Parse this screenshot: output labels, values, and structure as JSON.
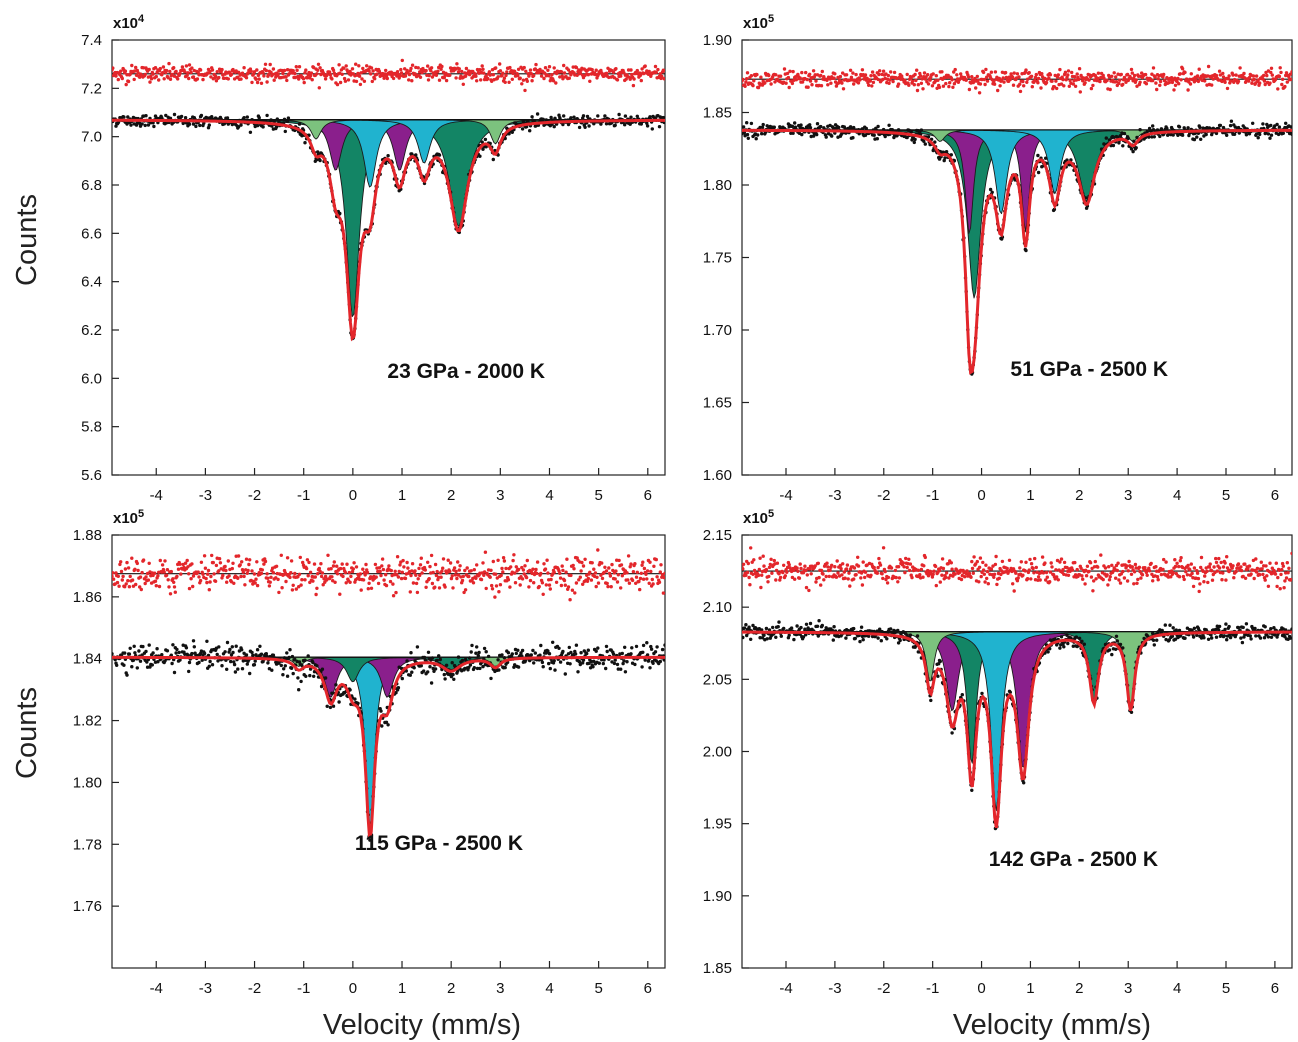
{
  "figure": {
    "ylabel": "Counts",
    "xlabel": "Velocity (mm/s)"
  },
  "colors": {
    "raw_points": "#111111",
    "residual_points": "#e3262b",
    "fit_line": "#e3262b",
    "reference_line": "#111111",
    "components": {
      "dark_green": "#138565",
      "light_green": "#7cc27e",
      "purple": "#8a1f8c",
      "cyan": "#20b3cf"
    }
  },
  "chart_data": [
    {
      "type": "scatter",
      "annotation": "23 GPa - 2000 K",
      "multiplier": "x10",
      "multiplier_exp": "4",
      "unit": 10000,
      "xlim": [
        -4.9,
        6.35
      ],
      "ylim": [
        5.6,
        7.4
      ],
      "xticks": [
        "-4",
        "-3",
        "-2",
        "-1",
        "0",
        "1",
        "2",
        "3",
        "4",
        "5",
        "6"
      ],
      "yticks": [
        "5.6",
        "5.8",
        "6.0",
        "6.2",
        "6.4",
        "6.6",
        "6.8",
        "7.0",
        "7.2",
        "7.4"
      ],
      "baseline": 7.07,
      "residual_level": 7.26,
      "residual_noise": 0.017,
      "data_noise": 0.012,
      "components": [
        {
          "color": "dark_green",
          "center": 0.0,
          "depth": 0.82,
          "width": 0.32
        },
        {
          "color": "dark_green",
          "center": 2.15,
          "depth": 0.44,
          "width": 0.45
        },
        {
          "color": "purple",
          "center": -0.35,
          "depth": 0.21,
          "width": 0.3
        },
        {
          "color": "purple",
          "center": 0.95,
          "depth": 0.21,
          "width": 0.3
        },
        {
          "color": "cyan",
          "center": 0.35,
          "depth": 0.28,
          "width": 0.3
        },
        {
          "color": "cyan",
          "center": 1.45,
          "depth": 0.18,
          "width": 0.3
        },
        {
          "color": "light_green",
          "center": -0.75,
          "depth": 0.08,
          "width": 0.25
        },
        {
          "color": "light_green",
          "center": 2.9,
          "depth": 0.1,
          "width": 0.25
        }
      ]
    },
    {
      "type": "scatter",
      "annotation": "51 GPa - 2500 K",
      "multiplier": "x10",
      "multiplier_exp": "5",
      "unit": 100000,
      "xlim": [
        -4.9,
        6.35
      ],
      "ylim": [
        1.6,
        1.9
      ],
      "xticks": [
        "-4",
        "-3",
        "-2",
        "-1",
        "0",
        "1",
        "2",
        "3",
        "4",
        "5",
        "6"
      ],
      "yticks": [
        "1.60",
        "1.65",
        "1.70",
        "1.75",
        "1.80",
        "1.85",
        "1.90"
      ],
      "baseline": 1.838,
      "residual_level": 1.873,
      "residual_noise": 0.003,
      "data_noise": 0.0022,
      "components": [
        {
          "color": "dark_green",
          "center": -0.15,
          "depth": 0.116,
          "width": 0.32
        },
        {
          "color": "dark_green",
          "center": 2.15,
          "depth": 0.048,
          "width": 0.4
        },
        {
          "color": "purple",
          "center": -0.25,
          "depth": 0.072,
          "width": 0.2
        },
        {
          "color": "purple",
          "center": 0.9,
          "depth": 0.07,
          "width": 0.2
        },
        {
          "color": "cyan",
          "center": 0.4,
          "depth": 0.058,
          "width": 0.28
        },
        {
          "color": "cyan",
          "center": 1.5,
          "depth": 0.044,
          "width": 0.28
        },
        {
          "color": "light_green",
          "center": -0.85,
          "depth": 0.008,
          "width": 0.25
        },
        {
          "color": "light_green",
          "center": 3.1,
          "depth": 0.008,
          "width": 0.25
        }
      ]
    },
    {
      "type": "scatter",
      "annotation": "115 GPa - 2500 K",
      "multiplier": "x10",
      "multiplier_exp": "5",
      "unit": 100000,
      "xlim": [
        -4.9,
        6.35
      ],
      "ylim": [
        1.74,
        1.88
      ],
      "xticks": [
        "-4",
        "-3",
        "-2",
        "-1",
        "0",
        "1",
        "2",
        "3",
        "4",
        "5",
        "6"
      ],
      "yticks": [
        "1.76",
        "1.78",
        "1.80",
        "1.82",
        "1.84",
        "1.86",
        "1.88"
      ],
      "baseline": 1.8405,
      "residual_level": 1.8675,
      "residual_noise": 0.0028,
      "data_noise": 0.0019,
      "components": [
        {
          "color": "cyan",
          "center": 0.35,
          "depth": 0.055,
          "width": 0.22
        },
        {
          "color": "purple",
          "center": -0.45,
          "depth": 0.013,
          "width": 0.3
        },
        {
          "color": "purple",
          "center": 0.7,
          "depth": 0.013,
          "width": 0.3
        },
        {
          "color": "dark_green",
          "center": 0.0,
          "depth": 0.008,
          "width": 0.3
        },
        {
          "color": "dark_green",
          "center": 2.0,
          "depth": 0.004,
          "width": 0.45
        },
        {
          "color": "light_green",
          "center": -1.1,
          "depth": 0.003,
          "width": 0.25
        },
        {
          "color": "light_green",
          "center": 2.9,
          "depth": 0.003,
          "width": 0.25
        }
      ]
    },
    {
      "type": "scatter",
      "annotation": "142 GPa - 2500 K",
      "multiplier": "x10",
      "multiplier_exp": "5",
      "unit": 100000,
      "xlim": [
        -4.9,
        6.35
      ],
      "ylim": [
        1.85,
        2.15
      ],
      "xticks": [
        "-4",
        "-3",
        "-2",
        "-1",
        "0",
        "1",
        "2",
        "3",
        "4",
        "5",
        "6"
      ],
      "yticks": [
        "1.85",
        "1.90",
        "1.95",
        "2.00",
        "2.05",
        "2.10",
        "2.15"
      ],
      "baseline": 2.083,
      "residual_level": 2.125,
      "residual_noise": 0.0045,
      "data_noise": 0.0025,
      "components": [
        {
          "color": "purple",
          "center": -0.6,
          "depth": 0.055,
          "width": 0.3
        },
        {
          "color": "purple",
          "center": 0.85,
          "depth": 0.095,
          "width": 0.28
        },
        {
          "color": "dark_green",
          "center": -0.2,
          "depth": 0.092,
          "width": 0.22
        },
        {
          "color": "dark_green",
          "center": 2.3,
          "depth": 0.048,
          "width": 0.22
        },
        {
          "color": "cyan",
          "center": 0.3,
          "depth": 0.124,
          "width": 0.25
        },
        {
          "color": "light_green",
          "center": -1.05,
          "depth": 0.035,
          "width": 0.2
        },
        {
          "color": "light_green",
          "center": 3.05,
          "depth": 0.053,
          "width": 0.2
        }
      ]
    }
  ]
}
